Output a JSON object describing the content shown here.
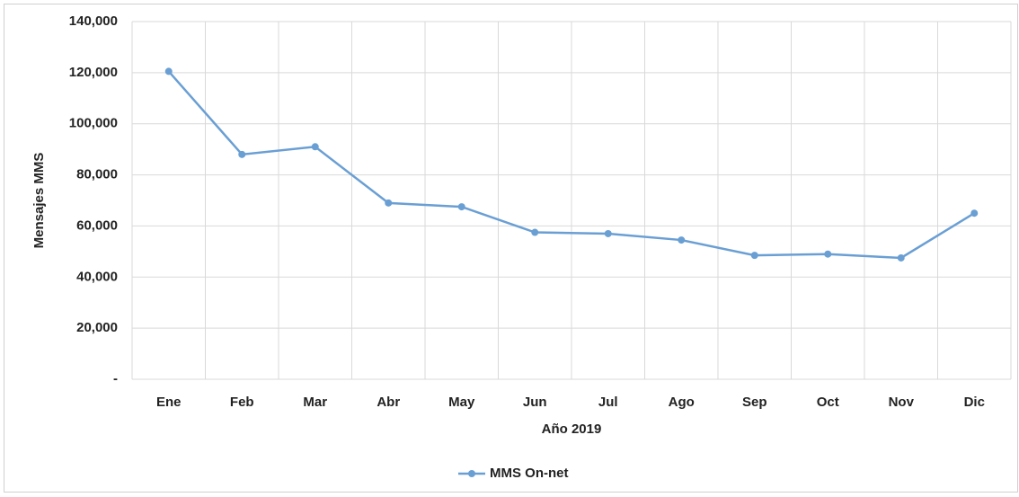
{
  "chart_data": {
    "type": "line",
    "categories": [
      "Ene",
      "Feb",
      "Mar",
      "Abr",
      "May",
      "Jun",
      "Jul",
      "Ago",
      "Sep",
      "Oct",
      "Nov",
      "Dic"
    ],
    "series": [
      {
        "name": "MMS On-net",
        "color": "#6a9fd4",
        "values": [
          120500,
          88000,
          91000,
          69000,
          67500,
          57500,
          57000,
          54500,
          48500,
          49000,
          47500,
          65000
        ]
      }
    ],
    "xlabel": "Año 2019",
    "ylabel": "Mensajes MMS",
    "ylim": [
      0,
      140000
    ],
    "yticks": [
      {
        "value": 0,
        "label": "-"
      },
      {
        "value": 20000,
        "label": "20,000"
      },
      {
        "value": 40000,
        "label": "40,000"
      },
      {
        "value": 60000,
        "label": "60,000"
      },
      {
        "value": 80000,
        "label": "80,000"
      },
      {
        "value": 100000,
        "label": "100,000"
      },
      {
        "value": 120000,
        "label": "120,000"
      },
      {
        "value": 140000,
        "label": "140,000"
      }
    ],
    "grid": true,
    "legend": "bottom"
  }
}
